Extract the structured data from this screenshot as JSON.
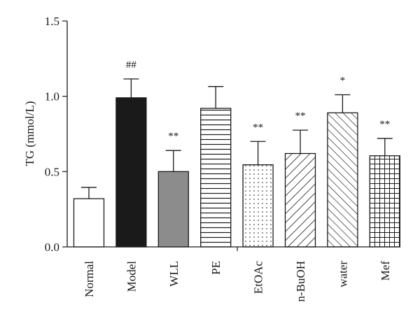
{
  "chart_data": {
    "type": "bar",
    "title": "",
    "xlabel": "",
    "ylabel": "TG (mmol/L)",
    "ylim": [
      0,
      1.5
    ],
    "yticks": [
      0.0,
      0.5,
      1.0,
      1.5
    ],
    "ytick_labels": [
      "0.0",
      "0.5",
      "1.0",
      "1.5"
    ],
    "grid": false,
    "categories": [
      "Normal",
      "Model",
      "WLL",
      "PE",
      "EtOAc",
      "n-BuOH",
      "water",
      "Mef"
    ],
    "values": [
      0.32,
      0.99,
      0.5,
      0.92,
      0.545,
      0.62,
      0.89,
      0.605
    ],
    "errors": [
      0.075,
      0.125,
      0.14,
      0.145,
      0.155,
      0.155,
      0.12,
      0.115
    ],
    "annotations": [
      "",
      "##",
      "**",
      "",
      "**",
      "**",
      "*",
      "**"
    ],
    "patterns": [
      "white",
      "black",
      "gray",
      "horizontal-lines",
      "dots",
      "diagonal-lines",
      "dense-diagonal-lines",
      "grid"
    ],
    "colors": {
      "stroke": "#1a1a1a",
      "model_fill": "#1a1a1a",
      "wll_fill": "#8c8c8c",
      "background": "#ffffff"
    }
  }
}
